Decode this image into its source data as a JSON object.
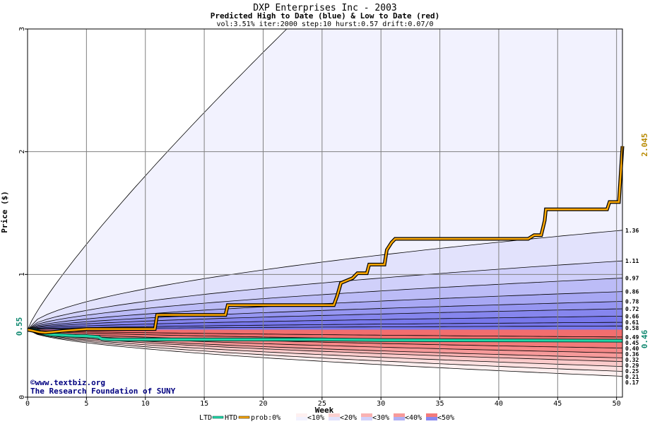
{
  "chart_data": {
    "type": "area",
    "title": "DXP Enterprises Inc - 2003",
    "subtitle": "Predicted High to Date (blue) &  Low to Date (red)",
    "params": "vol:3.51% iter:2000 step:10 hurst:0.57 drift:0.07/0",
    "xlabel": "Week",
    "ylabel": "Price ($)",
    "xlim": [
      0,
      50.5
    ],
    "ylim": [
      0,
      3
    ],
    "grid": true,
    "x_ticks": [
      0,
      5,
      10,
      15,
      20,
      25,
      30,
      35,
      40,
      45,
      50
    ],
    "y_ticks": [
      0,
      1,
      2,
      3
    ],
    "start_price": 0.55,
    "start_label": "0.55",
    "htd_label": "2.045",
    "htd_end": 2.045,
    "ltd_label": "0.46",
    "ltd_end": 0.46,
    "high_quantiles": [
      1.36,
      1.11,
      0.97,
      0.86,
      0.78,
      0.72,
      0.66,
      0.61,
      0.58
    ],
    "high_outer": 3.0,
    "high_outer_reach_week": 22,
    "low_quantiles": [
      0.49,
      0.45,
      0.4,
      0.36,
      0.32,
      0.29,
      0.25,
      0.21,
      0.17
    ],
    "right_labels": [
      "1.36",
      "1.11",
      "0.97",
      "0.86",
      "0.78",
      "0.72",
      "0.66",
      "0.61",
      "0.58",
      "0.49",
      "0.45",
      "0.40",
      "0.36",
      "0.32",
      "0.29",
      "0.25",
      "0.21",
      "0.17"
    ],
    "htd_series": {
      "name": "HTD",
      "points": [
        [
          0,
          0.55
        ],
        [
          0.5,
          0.54
        ],
        [
          1,
          0.53
        ],
        [
          1.5,
          0.525
        ],
        [
          2,
          0.53
        ],
        [
          3,
          0.54
        ],
        [
          5,
          0.555
        ],
        [
          10.8,
          0.555
        ],
        [
          11,
          0.67
        ],
        [
          16.8,
          0.67
        ],
        [
          17,
          0.75
        ],
        [
          26,
          0.75
        ],
        [
          26.3,
          0.83
        ],
        [
          26.6,
          0.93
        ],
        [
          27.6,
          0.97
        ],
        [
          28,
          1.01
        ],
        [
          28.8,
          1.01
        ],
        [
          29,
          1.08
        ],
        [
          30.3,
          1.08
        ],
        [
          30.5,
          1.2
        ],
        [
          30.9,
          1.26
        ],
        [
          31.2,
          1.29
        ],
        [
          42.5,
          1.29
        ],
        [
          43,
          1.32
        ],
        [
          43.6,
          1.32
        ],
        [
          43.9,
          1.44
        ],
        [
          44,
          1.53
        ],
        [
          49.2,
          1.53
        ],
        [
          49.4,
          1.59
        ],
        [
          50.2,
          1.59
        ],
        [
          50.5,
          2.045
        ]
      ]
    },
    "ltd_series": {
      "name": "LTD",
      "points": [
        [
          0,
          0.55
        ],
        [
          0.5,
          0.545
        ],
        [
          1,
          0.535
        ],
        [
          1.5,
          0.515
        ],
        [
          2,
          0.51
        ],
        [
          3,
          0.505
        ],
        [
          4,
          0.5
        ],
        [
          5,
          0.498
        ],
        [
          6,
          0.49
        ],
        [
          6.3,
          0.475
        ],
        [
          7,
          0.47
        ],
        [
          25,
          0.47
        ],
        [
          30,
          0.465
        ],
        [
          50.5,
          0.46
        ]
      ]
    },
    "legend": [
      "LTD",
      "HTD",
      "prob:0%",
      "<10%",
      "<20%",
      "<30%",
      "<40%",
      "<50%"
    ],
    "watermark": [
      "©www.textbiz.org",
      "The Research Foundation of SUNY"
    ],
    "colors": {
      "htd": "#ffaa00",
      "ltd": "#22d8a8",
      "blue_bands": [
        "#f2f2fe",
        "#e2e2fc",
        "#d0d0fa",
        "#bcbcf7",
        "#a8a8f4",
        "#9696f1",
        "#8686ee",
        "#7878ec"
      ],
      "red_bands": [
        "#fef0f0",
        "#fde0e0",
        "#fbcaca",
        "#f9b2b2",
        "#f79a9a",
        "#f58888",
        "#f37a7a",
        "#f26e6e"
      ],
      "htd_label_color": "#b88a00",
      "ltd_label_color": "#108870",
      "watermark_color": "#000080"
    }
  }
}
